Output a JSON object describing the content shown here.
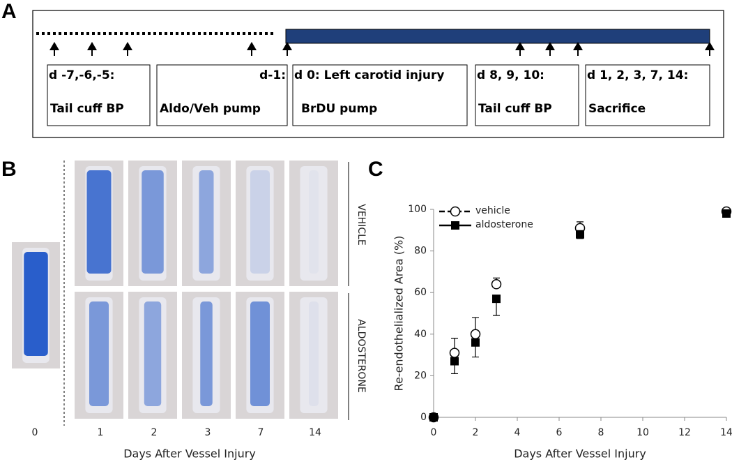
{
  "panel_a": {
    "label": "A",
    "boxes": [
      {
        "line1": "d -7,-6,-5:",
        "line2": "Tail cuff BP"
      },
      {
        "line1": "d-1:",
        "line2": "Aldo/Veh pump"
      },
      {
        "line1": "d 0: Left carotid injury",
        "line2": "BrDU pump"
      },
      {
        "line1": "d 8, 9, 10:",
        "line2": "Tail cuff BP"
      },
      {
        "line1": "d 1, 2, 3, 7, 14:",
        "line2": "Sacrifice"
      }
    ]
  },
  "panel_b": {
    "label": "B",
    "rows": [
      "VEHICLE",
      "ALDOSTERONE"
    ],
    "days": [
      "0",
      "1",
      "2",
      "3",
      "7",
      "14"
    ],
    "xlabel": "Days After Vessel Injury"
  },
  "chart_data": {
    "label": "C",
    "type": "line",
    "xlabel": "Days After Vessel Injury",
    "ylabel": "Re-endothelialized Area (%)",
    "xlim": [
      0,
      14
    ],
    "ylim": [
      0,
      100
    ],
    "xticks": [
      0,
      2,
      4,
      6,
      8,
      10,
      12,
      14
    ],
    "yticks": [
      0,
      20,
      40,
      60,
      80,
      100
    ],
    "legend": "upper left",
    "x": [
      0,
      1,
      2,
      3,
      7,
      14
    ],
    "series": [
      {
        "name": "vehicle",
        "color": "#000000",
        "dashed": true,
        "marker": "open-circle",
        "values": [
          0,
          31,
          40,
          64,
          91,
          99
        ],
        "errors": [
          0,
          7,
          8,
          3,
          3,
          1
        ]
      },
      {
        "name": "aldosterone",
        "color": "#000000",
        "dashed": false,
        "marker": "square",
        "values": [
          0,
          27,
          36,
          57,
          88,
          98
        ],
        "errors": [
          0,
          6,
          7,
          8,
          2,
          1
        ]
      }
    ]
  }
}
